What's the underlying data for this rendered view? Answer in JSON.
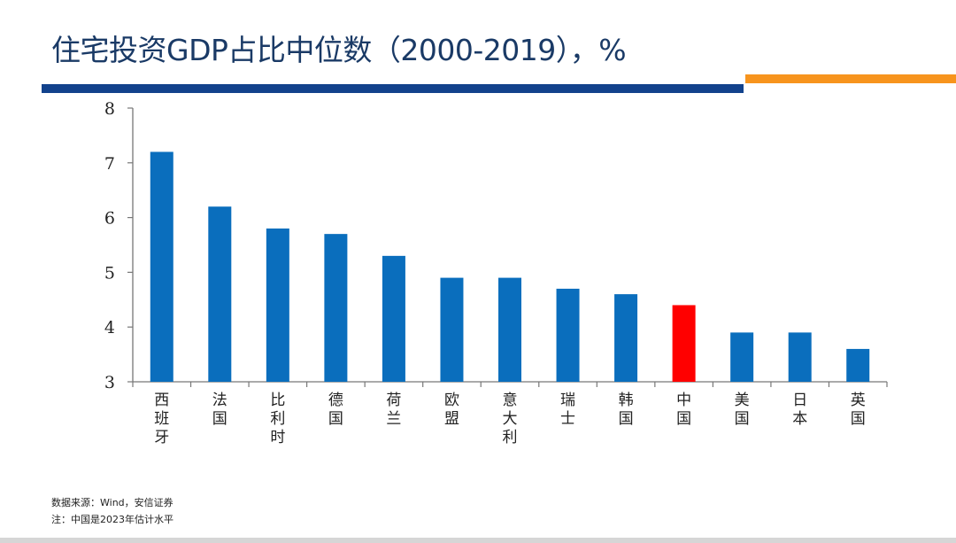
{
  "header": {
    "title": "住宅投资GDP占比中位数（2000-2019），%"
  },
  "colors": {
    "bar_default": "#0a6ebd",
    "bar_highlight": "#ff0000",
    "title_text": "#1a3a66",
    "rule_blue": "#12428c",
    "rule_orange": "#f7941d",
    "axis": "#777777"
  },
  "chart_data": {
    "type": "bar",
    "title": "住宅投资GDP占比中位数（2000-2019），%",
    "xlabel": "",
    "ylabel": "",
    "categories": [
      "西班牙",
      "法国",
      "比利时",
      "德国",
      "荷兰",
      "欧盟",
      "意大利",
      "瑞士",
      "韩国",
      "中国",
      "美国",
      "日本",
      "英国"
    ],
    "values": [
      7.2,
      6.2,
      5.8,
      5.7,
      5.3,
      4.9,
      4.9,
      4.7,
      4.6,
      4.4,
      3.9,
      3.9,
      3.6
    ],
    "highlight": "中国",
    "ylim": [
      3,
      8
    ],
    "yticks": [
      3,
      4,
      5,
      6,
      7,
      8
    ],
    "grid": false,
    "legend": "none",
    "category_label_orientation": "vertical"
  },
  "footnotes": {
    "source": "数据来源：Wind，安信证券",
    "note": "注：中国是2023年估计水平"
  }
}
